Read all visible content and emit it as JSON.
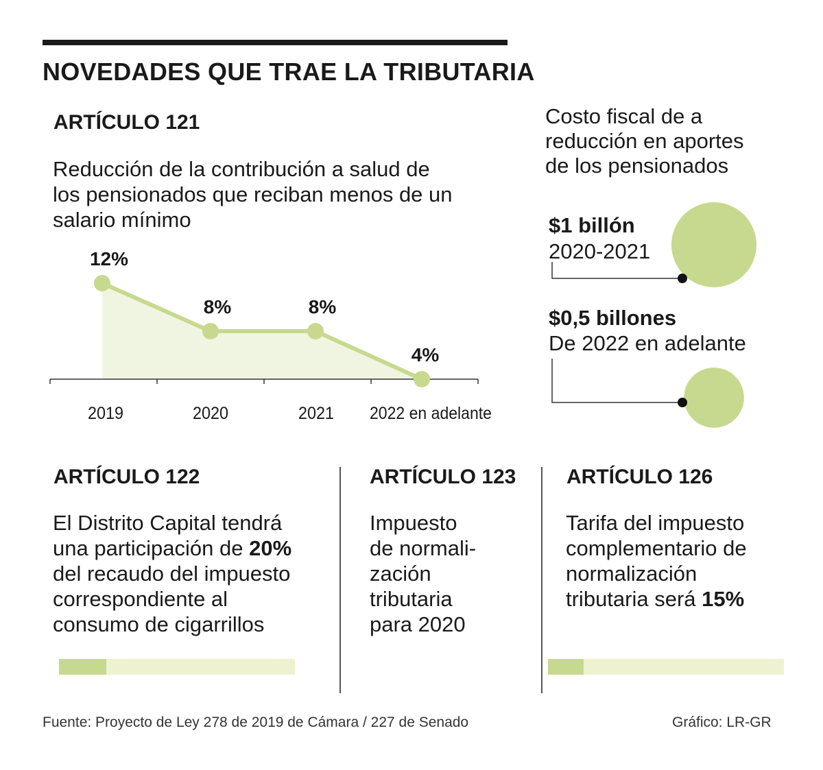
{
  "title": "NOVEDADES QUE TRAE LA TRIBUTARIA",
  "art121": {
    "title": "ARTÍCULO 121",
    "desc_lines": [
      "Reducción de la contribución a salud de",
      "los pensionados que reciban menos de un",
      "salario mínimo"
    ]
  },
  "chart_data": {
    "type": "line",
    "categories": [
      "2019",
      "2020",
      "2021",
      "2022 en adelante"
    ],
    "values": [
      12,
      8,
      8,
      4
    ],
    "data_labels": [
      "12%",
      "8%",
      "8%",
      "4%"
    ],
    "ylim": [
      4,
      12
    ],
    "xlabel": "",
    "ylabel": "",
    "grid": false
  },
  "cost": {
    "title_lines": [
      "Costo fiscal de a",
      "reducción en aportes",
      "de los pensionados"
    ],
    "items": [
      {
        "amount": "$1 billón",
        "period": "2020-2021",
        "value": 1.0
      },
      {
        "amount": "$0,5 billones",
        "period": "De 2022 en adelante",
        "value": 0.5
      }
    ]
  },
  "art122": {
    "title": "ARTÍCULO 122",
    "line1": "El Distrito Capital tendrá",
    "line2_pre": "una participación de ",
    "line2_bold": "20%",
    "line3": "del recaudo del impuesto",
    "line4": "correspondiente al",
    "line5": "consumo de cigarrillos",
    "share": 0.2
  },
  "art123": {
    "title": "ARTÍCULO 123",
    "lines": [
      "Impuesto",
      "de normali-",
      "zación",
      "tributaria",
      "para 2020"
    ]
  },
  "art126": {
    "title": "ARTÍCULO 126",
    "line1": "Tarifa del impuesto",
    "line2": "complementario de",
    "line3": "normalización",
    "line4_pre": "tributaria será ",
    "line4_bold": "15%",
    "share": 0.15
  },
  "footer": {
    "source": "Fuente: Proyecto de Ley 278 de 2019 de Cámara / 227 de Senado",
    "credit": "Gráfico: LR-GR"
  },
  "colors": {
    "accent": "#c6d98e",
    "accent_light": "#eef2cf",
    "area": "#f0f5e1",
    "text": "#1a1a1a"
  }
}
